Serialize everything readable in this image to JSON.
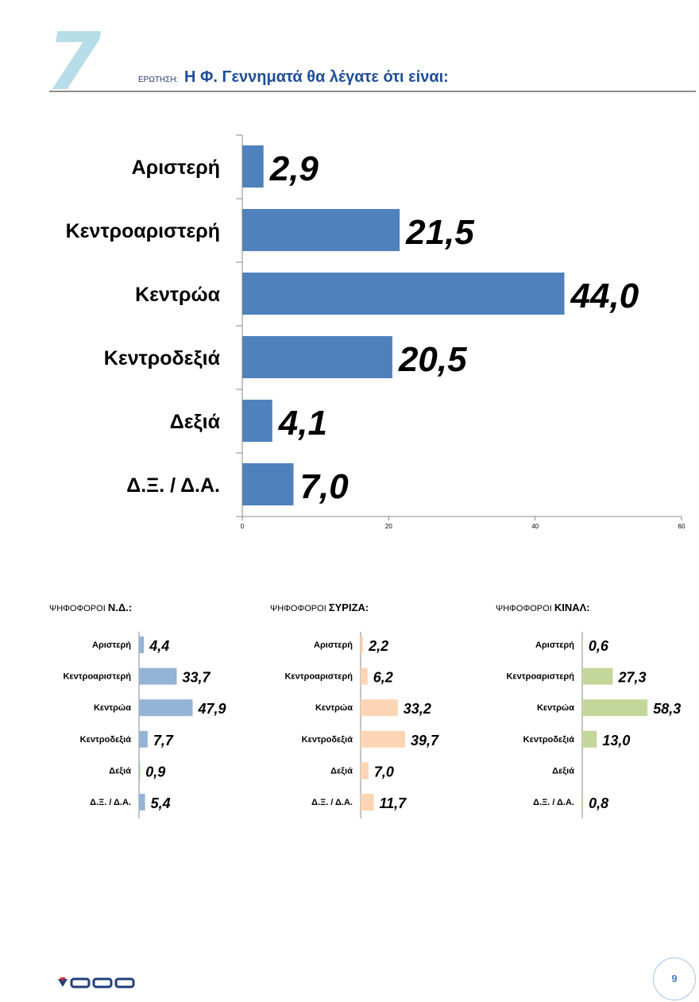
{
  "header": {
    "question_number": "7",
    "question_label": "ΕΡΩΤΗΣΗ:",
    "question_title": "Η Φ. Γεννηματά θα λέγατε ότι είναι:"
  },
  "chart_data": [
    {
      "type": "bar",
      "orientation": "horizontal",
      "categories": [
        "Αριστερή",
        "Κεντροαριστερή",
        "Κεντρώα",
        "Κεντροδεξιά",
        "Δεξιά",
        "Δ.Ξ. / Δ.Α."
      ],
      "values": [
        2.9,
        21.5,
        44.0,
        20.5,
        4.1,
        7.0
      ],
      "value_labels": [
        "2,9",
        "21,5",
        "44,0",
        "20,5",
        "4,1",
        "7,0"
      ],
      "xlim": [
        0,
        60
      ],
      "xticks": [
        "0",
        "20",
        "40",
        "60"
      ],
      "color": "#4f81bd",
      "grid": false
    },
    {
      "type": "bar",
      "orientation": "horizontal",
      "title_prefix": "ΨΗΦΟΦΟΡΟΙ",
      "title": "Ν.Δ.:",
      "categories": [
        "Αριστερή",
        "Κεντροαριστερή",
        "Κεντρώα",
        "Κεντροδεξιά",
        "Δεξιά",
        "Δ.Ξ. / Δ.Α."
      ],
      "values": [
        4.4,
        33.7,
        47.9,
        7.7,
        0.9,
        5.4
      ],
      "value_labels": [
        "4,4",
        "33,7",
        "47,9",
        "7,7",
        "0,9",
        "5,4"
      ],
      "color": "#95b3d7"
    },
    {
      "type": "bar",
      "orientation": "horizontal",
      "title_prefix": "ΨΗΦΟΦΟΡΟΙ",
      "title": "ΣΥΡΙΖΑ:",
      "categories": [
        "Αριστερή",
        "Κεντροαριστερή",
        "Κεντρώα",
        "Κεντροδεξιά",
        "Δεξιά",
        "Δ.Ξ. / Δ.Α."
      ],
      "values": [
        2.2,
        6.2,
        33.2,
        39.7,
        7.0,
        11.7
      ],
      "value_labels": [
        "2,2",
        "6,2",
        "33,2",
        "39,7",
        "7,0",
        "11,7"
      ],
      "color": "#fcd5b4"
    },
    {
      "type": "bar",
      "orientation": "horizontal",
      "title_prefix": "ΨΗΦΟΦΟΡΟΙ",
      "title": "ΚΙΝΑΛ:",
      "categories": [
        "Αριστερή",
        "Κεντροαριστερή",
        "Κεντρώα",
        "Κεντροδεξιά",
        "Δεξιά",
        "Δ.Ξ. / Δ.Α."
      ],
      "values": [
        0.6,
        27.3,
        58.3,
        13.0,
        null,
        0.8
      ],
      "value_labels": [
        "0,6",
        "27,3",
        "58,3",
        "13,0",
        "",
        "0,8"
      ],
      "color": "#c4d79b"
    }
  ],
  "footer": {
    "logo": "GPO",
    "page_number": "9"
  }
}
